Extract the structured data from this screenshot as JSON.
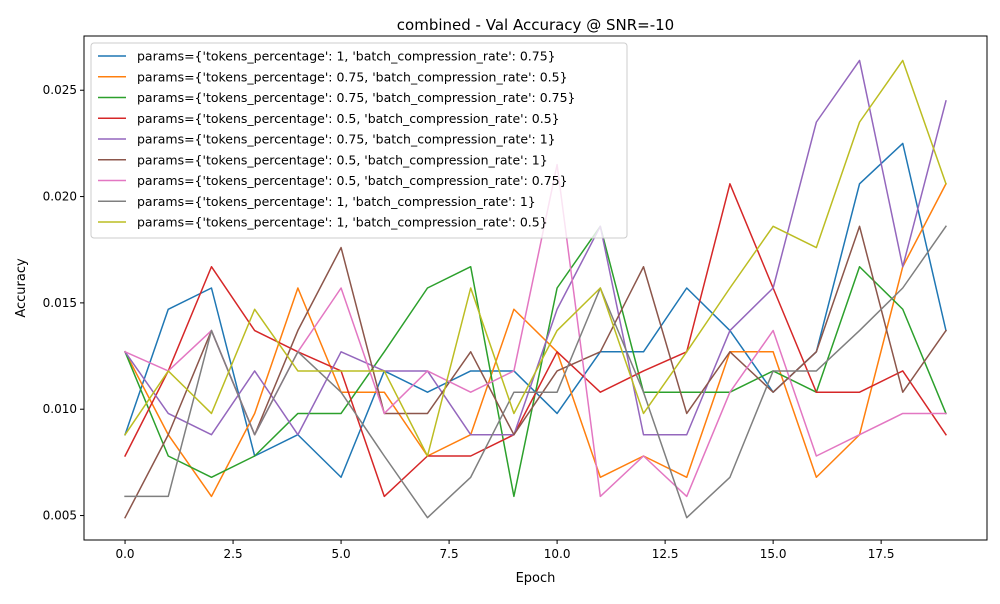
{
  "chart_data": {
    "type": "line",
    "title": "combined - Val Accuracy @ SNR=-10",
    "xlabel": "Epoch",
    "ylabel": "Accuracy",
    "xlim": [
      -0.95,
      19.95
    ],
    "ylim": [
      0.00385,
      0.02755
    ],
    "xticks": [
      0.0,
      2.5,
      5.0,
      7.5,
      10.0,
      12.5,
      15.0,
      17.5
    ],
    "xtick_labels": [
      "0.0",
      "2.5",
      "5.0",
      "7.5",
      "10.0",
      "12.5",
      "15.0",
      "17.5"
    ],
    "yticks": [
      0.005,
      0.01,
      0.015,
      0.02,
      0.025
    ],
    "ytick_labels": [
      "0.005",
      "0.010",
      "0.015",
      "0.020",
      "0.025"
    ],
    "grid": false,
    "legend_position": "top-left",
    "x": [
      0,
      1,
      2,
      3,
      4,
      5,
      6,
      7,
      8,
      9,
      10,
      11,
      12,
      13,
      14,
      15,
      16,
      17,
      18,
      19
    ],
    "series": [
      {
        "name": "params={'tokens_percentage': 1, 'batch_compression_rate': 0.75}",
        "color": "#1f77b4",
        "values": [
          0.0088,
          0.0147,
          0.0157,
          0.0078,
          0.0088,
          0.0068,
          0.0118,
          0.0108,
          0.0118,
          0.0118,
          0.0098,
          0.0127,
          0.0127,
          0.0157,
          0.0137,
          0.0108,
          0.0127,
          0.0206,
          0.0225,
          0.0137
        ]
      },
      {
        "name": "params={'tokens_percentage': 0.75, 'batch_compression_rate': 0.5}",
        "color": "#ff7f0e",
        "values": [
          0.0127,
          0.0088,
          0.0059,
          0.0098,
          0.0157,
          0.0108,
          0.0108,
          0.0078,
          0.0088,
          0.0147,
          0.0127,
          0.0068,
          0.0078,
          0.0068,
          0.0127,
          0.0127,
          0.0068,
          0.0088,
          0.0167,
          0.0206
        ]
      },
      {
        "name": "params={'tokens_percentage': 0.75, 'batch_compression_rate': 0.75}",
        "color": "#2ca02c",
        "values": [
          0.0127,
          0.0078,
          0.0068,
          0.0078,
          0.0098,
          0.0098,
          0.0127,
          0.0157,
          0.0167,
          0.0059,
          0.0157,
          0.0186,
          0.0108,
          0.0108,
          0.0108,
          0.0118,
          0.0108,
          0.0167,
          0.0147,
          0.0098
        ]
      },
      {
        "name": "params={'tokens_percentage': 0.5, 'batch_compression_rate': 0.5}",
        "color": "#d62728",
        "values": [
          0.0078,
          0.0118,
          0.0167,
          0.0137,
          0.0127,
          0.0118,
          0.0059,
          0.0078,
          0.0078,
          0.0088,
          0.0127,
          0.0108,
          0.0118,
          0.0127,
          0.0206,
          0.0157,
          0.0108,
          0.0108,
          0.0118,
          0.0088
        ]
      },
      {
        "name": "params={'tokens_percentage': 0.75, 'batch_compression_rate': 1}",
        "color": "#9467bd",
        "values": [
          0.0127,
          0.0098,
          0.0088,
          0.0118,
          0.0088,
          0.0127,
          0.0118,
          0.0118,
          0.0088,
          0.0088,
          0.0147,
          0.0186,
          0.0088,
          0.0088,
          0.0137,
          0.0157,
          0.0235,
          0.0264,
          0.0167,
          0.0245
        ]
      },
      {
        "name": "params={'tokens_percentage': 0.5, 'batch_compression_rate': 1}",
        "color": "#8c564b",
        "values": [
          0.0049,
          0.0088,
          0.0137,
          0.0088,
          0.0137,
          0.0176,
          0.0098,
          0.0098,
          0.0127,
          0.0088,
          0.0118,
          0.0127,
          0.0167,
          0.0098,
          0.0127,
          0.0108,
          0.0127,
          0.0186,
          0.0108,
          0.0137
        ]
      },
      {
        "name": "params={'tokens_percentage': 0.5, 'batch_compression_rate': 0.75}",
        "color": "#e377c2",
        "values": [
          0.0127,
          0.0118,
          0.0137,
          0.0088,
          0.0127,
          0.0157,
          0.0098,
          0.0118,
          0.0108,
          0.0118,
          0.0215,
          0.0059,
          0.0078,
          0.0059,
          0.0108,
          0.0137,
          0.0078,
          0.0088,
          0.0098,
          0.0098
        ]
      },
      {
        "name": "params={'tokens_percentage': 1, 'batch_compression_rate': 1}",
        "color": "#7f7f7f",
        "values": [
          0.0059,
          0.0059,
          0.0137,
          0.0088,
          0.0127,
          0.0108,
          0.0078,
          0.0049,
          0.0068,
          0.0108,
          0.0108,
          0.0157,
          0.0108,
          0.0049,
          0.0068,
          0.0118,
          0.0118,
          0.0137,
          0.0157,
          0.0186
        ]
      },
      {
        "name": "params={'tokens_percentage': 1, 'batch_compression_rate': 0.5}",
        "color": "#bcbd22",
        "values": [
          0.0088,
          0.0118,
          0.0098,
          0.0147,
          0.0118,
          0.0118,
          0.0118,
          0.0078,
          0.0157,
          0.0098,
          0.0137,
          0.0157,
          0.0098,
          0.0127,
          0.0157,
          0.0186,
          0.0176,
          0.0235,
          0.0264,
          0.0206
        ]
      }
    ]
  }
}
